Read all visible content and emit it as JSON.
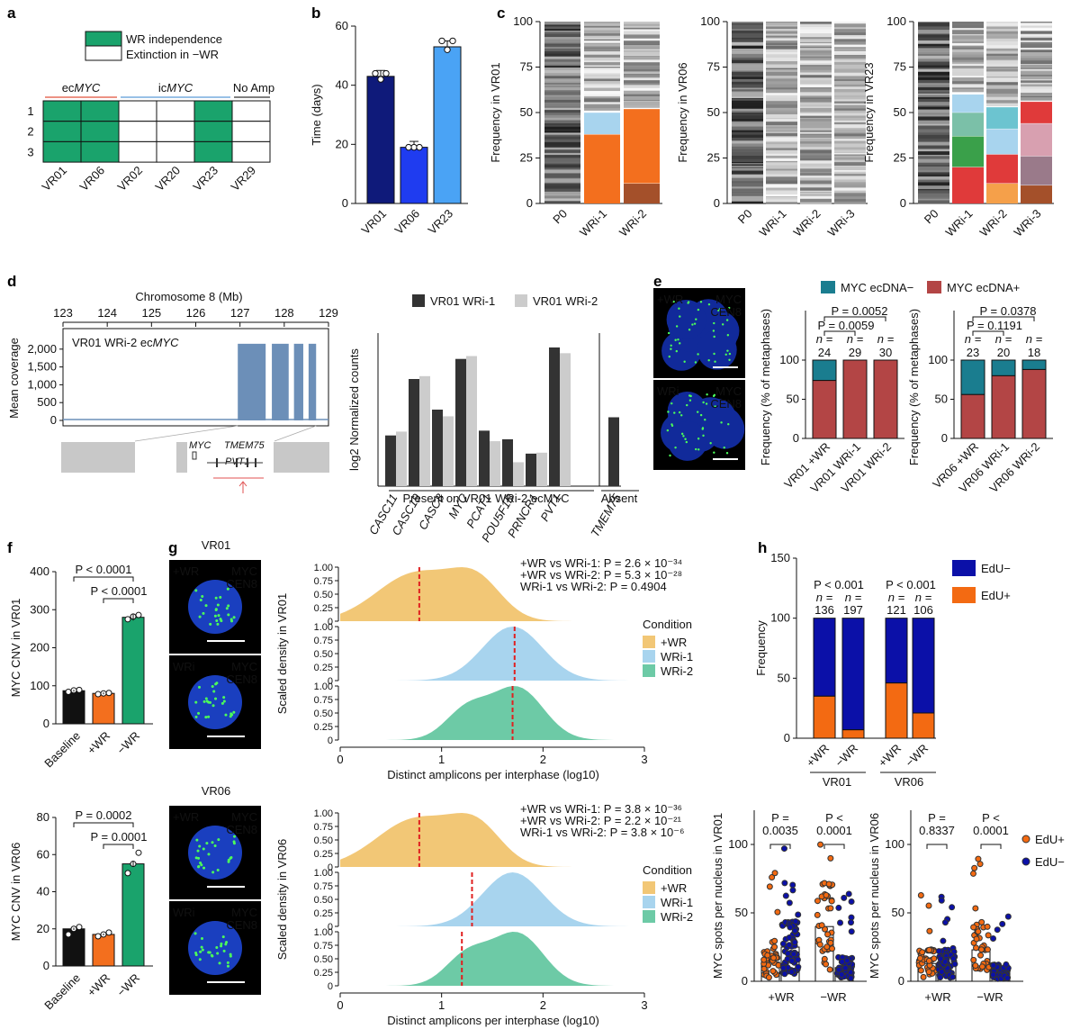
{
  "panel_labels": {
    "a": "a",
    "b": "b",
    "c": "c",
    "d": "d",
    "e": "e",
    "f": "f",
    "g": "g",
    "h": "h"
  },
  "colors": {
    "navy": "#0f1a7a",
    "blue": "#1f3cf0",
    "lightblue": "#4aa3f5",
    "green": "#1aa36c",
    "orange": "#f36f1e",
    "ecdna_neg": "#1a7d8f",
    "ecdna_pos": "#b34545",
    "edu_neg": "#0b10a8",
    "edu_pos": "#f36a12",
    "cond_wr": "#f2c776",
    "cond_wri1": "#a8d4ee",
    "cond_wri2": "#6dcaa6",
    "cov": "#6c8fb8",
    "gene_grey": "#c8c8c8",
    "red_dash": "#e02020"
  },
  "panel_a": {
    "legend": [
      "WR independence",
      "Extinction in −WR"
    ],
    "groups": [
      "MYC_ec",
      "MYC_ic",
      "No Amp"
    ],
    "group_prefix": [
      "ec",
      "ic",
      ""
    ],
    "group_gene": [
      "MYC",
      "MYC",
      ""
    ],
    "group_label_noamp": "No Amp",
    "rows": [
      "1",
      "2",
      "3"
    ],
    "columns": [
      "VR01",
      "VR06",
      "VR02",
      "VR20",
      "VR23",
      "VR29"
    ],
    "grid": [
      [
        1,
        1,
        0,
        0,
        1,
        0
      ],
      [
        1,
        1,
        0,
        0,
        1,
        0
      ],
      [
        1,
        1,
        0,
        0,
        1,
        0
      ]
    ]
  },
  "panel_b": {
    "chart_data": {
      "type": "bar",
      "ylabel": "Time (days)",
      "categories": [
        "VR01",
        "VR06",
        "VR23"
      ],
      "values": [
        43,
        19,
        53
      ],
      "points": [
        [
          42,
          44,
          44
        ],
        [
          19,
          19,
          19
        ],
        [
          52,
          55,
          55
        ]
      ],
      "ylim": [
        0,
        60
      ],
      "yticks": [
        "0",
        "20",
        "40",
        "60"
      ]
    }
  },
  "panel_c": {
    "ylabels": [
      "Frequency in VR01",
      "Frequency in VR06",
      "Frequency in VR23"
    ],
    "yticks": [
      "0",
      "25",
      "50",
      "75",
      "100"
    ],
    "xlabels": [
      [
        "P0",
        "WRi-1",
        "WRi-2"
      ],
      [
        "P0",
        "WRi-1",
        "WRi-2",
        "WRi-3"
      ],
      [
        "P0",
        "WRi-1",
        "WRi-2",
        "WRi-3"
      ]
    ]
  },
  "panel_d": {
    "title": "Chromosome 8 (Mb)",
    "xticks": [
      "123",
      "124",
      "125",
      "126",
      "127",
      "128",
      "129"
    ],
    "ylabel": "Mean coverage",
    "yticks": [
      "0",
      "500",
      "1,000",
      "1,500",
      "2,000"
    ],
    "track_label_prefix": "VR01 WRi-2 ec",
    "track_label_gene": "MYC",
    "gene_labels": [
      "MYC",
      "TMEM75",
      "PVT1"
    ],
    "bar_chart": {
      "legend": [
        "VR01 WRi-1",
        "VR01 WRi-2"
      ],
      "ylabel": "log2 Normalized counts",
      "categories": [
        "CASC11",
        "CASC19",
        "CASC8",
        "MYC",
        "PCAT1",
        "POU5F1B",
        "PRNCR1",
        "PVT1",
        "TMEM75"
      ],
      "series": [
        {
          "name": "VR01 WRi-1",
          "values": [
            5.3,
            11.2,
            8.0,
            13.3,
            5.8,
            4.9,
            3.4,
            14.5,
            7.2
          ]
        },
        {
          "name": "VR01 WRi-2",
          "values": [
            5.7,
            11.5,
            7.3,
            13.6,
            4.7,
            2.5,
            3.5,
            13.9,
            0
          ]
        }
      ],
      "group_labels": [
        "Present on VR01 WRi-2 ecMYC",
        "Absent"
      ]
    }
  },
  "panel_e": {
    "legend": [
      "MYC ecDNA−",
      "MYC ecDNA+"
    ],
    "image_labels": [
      [
        "+WR",
        "MYC",
        "CEN8"
      ],
      [
        "WRi",
        "MYC",
        "CEN8"
      ]
    ],
    "ylabel": "Frequency (% of metaphases)",
    "yticks": [
      "0",
      "50",
      "100"
    ],
    "chart1": {
      "categories": [
        "VR01 +WR",
        "VR01 WRi-1",
        "VR01 WRi-2"
      ],
      "pos_pct": [
        74,
        100,
        100
      ],
      "n": [
        "24",
        "29",
        "30"
      ],
      "pvals": [
        "P = 0.0052",
        "P = 0.0059"
      ]
    },
    "chart2": {
      "categories": [
        "VR06 +WR",
        "VR06 WRi-1",
        "VR06 WRi-2"
      ],
      "pos_pct": [
        56,
        80,
        88
      ],
      "n": [
        "23",
        "20",
        "18"
      ],
      "pvals": [
        "P = 0.0378",
        "P = 0.1191"
      ]
    },
    "n_label": "n ="
  },
  "panel_f": {
    "top": {
      "ylabel": "MYC CNV in VR01",
      "yticks": [
        "0",
        "100",
        "200",
        "300",
        "400"
      ],
      "categories": [
        "Baseline",
        "+WR",
        "−WR"
      ],
      "values": [
        87,
        80,
        280
      ],
      "points": [
        [
          84,
          88,
          89
        ],
        [
          78,
          80,
          81
        ],
        [
          275,
          282,
          286
        ]
      ],
      "pvals": [
        "P < 0.0001",
        "P < 0.0001"
      ]
    },
    "bottom": {
      "ylabel": "MYC CNV in VR06",
      "yticks": [
        "0",
        "20",
        "40",
        "60",
        "80"
      ],
      "categories": [
        "Baseline",
        "+WR",
        "−WR"
      ],
      "values": [
        20,
        17,
        55
      ],
      "points": [
        [
          17,
          20,
          21
        ],
        [
          16,
          17,
          18
        ],
        [
          50,
          55,
          61
        ]
      ],
      "pvals": [
        "P = 0.0002",
        "P = 0.0001"
      ]
    }
  },
  "panel_g": {
    "top": {
      "title": "VR01",
      "image_labels": [
        [
          "+WR",
          "MYC",
          "CEN8"
        ],
        [
          "WRi",
          "MYC",
          "CEN8"
        ]
      ],
      "ylabel": "Scaled density in VR01",
      "stats": [
        "+WR vs WRi-1: P = 2.6 × 10⁻³⁴",
        "+WR vs WRi-2: P = 5.3 × 10⁻²⁸",
        "WRi-1 vs WRi-2: P = 0.4904"
      ],
      "medians": [
        0.78,
        1.72,
        1.7
      ]
    },
    "bottom": {
      "title": "VR06",
      "image_labels": [
        [
          "+WR",
          "MYC",
          "CEN8"
        ],
        [
          "WRi",
          "MYC",
          "CEN8"
        ]
      ],
      "ylabel": "Scaled density in VR06",
      "stats": [
        "+WR vs WRi-1: P = 3.8 × 10⁻³⁶",
        "+WR vs WRi-2: P = 2.2 × 10⁻²¹",
        "WRi-1 vs WRi-2: P = 3.8 × 10⁻⁶"
      ],
      "medians": [
        0.78,
        1.3,
        1.2
      ]
    },
    "xlabel": "Distinct amplicons per interphase (log10)",
    "xticks": [
      "0",
      "1",
      "2",
      "3"
    ],
    "yticks": [
      "0",
      "0.25",
      "0.50",
      "0.75",
      "1.00"
    ],
    "legend_title": "Condition",
    "legend": [
      "+WR",
      "WRi-1",
      "WRi-2"
    ]
  },
  "panel_h": {
    "legend": [
      "EdU−",
      "EdU+"
    ],
    "ylabel": "Frequency",
    "yticks": [
      "0",
      "50",
      "100",
      "150"
    ],
    "categories": [
      "+WR",
      "−WR",
      "+WR",
      "−WR"
    ],
    "groups": [
      "VR01",
      "VR06"
    ],
    "pos_pct": [
      35,
      7,
      46,
      21
    ],
    "n": [
      "136",
      "197",
      "121",
      "106"
    ],
    "pvals": [
      "P < 0.001",
      "P < 0.001"
    ],
    "n_label": "n =",
    "scatter1": {
      "ylabel": "MYC spots per nucleus in VR01",
      "yticks": [
        "0",
        "50",
        "100"
      ],
      "pvals": [
        [
          "P =",
          "0.0035"
        ],
        [
          "P <",
          "0.0001"
        ]
      ],
      "means": [
        14,
        25,
        40,
        10
      ],
      "categories": [
        "+WR",
        "−WR"
      ]
    },
    "scatter2": {
      "ylabel": "MYC spots per nucleus in VR06",
      "yticks": [
        "0",
        "50",
        "100"
      ],
      "pvals": [
        [
          "P =",
          "0.8337"
        ],
        [
          "P <",
          "0.0001"
        ]
      ],
      "means": [
        13,
        13,
        23,
        7
      ],
      "categories": [
        "+WR",
        "−WR"
      ]
    },
    "scatter_legend": [
      "EdU+",
      "EdU−"
    ]
  }
}
